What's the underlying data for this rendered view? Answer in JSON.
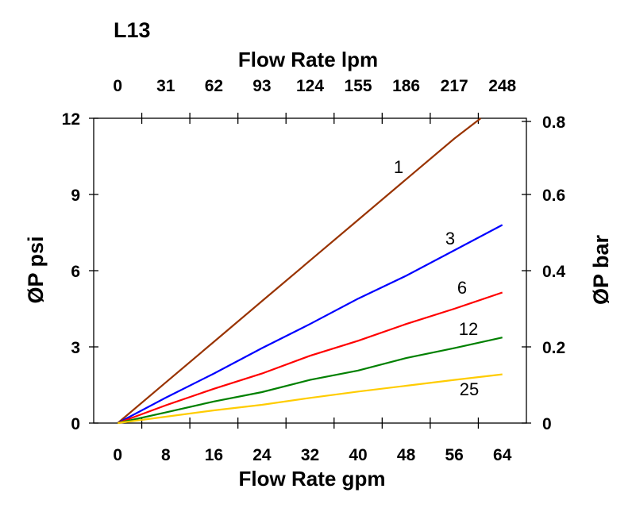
{
  "chart_data": {
    "type": "line",
    "title": "L13",
    "xlabel": "Flow Rate gpm",
    "x2label": "Flow Rate lpm",
    "ylabel": "ØP psi",
    "y2label": "ØP bar",
    "xlim": [
      -4,
      68
    ],
    "ylim": [
      0,
      12
    ],
    "xticks": [
      "0",
      "8",
      "16",
      "24",
      "32",
      "40",
      "48",
      "56",
      "64"
    ],
    "xtick_values": [
      0,
      8,
      16,
      24,
      32,
      40,
      48,
      56,
      64
    ],
    "x2ticks": [
      "0",
      "31",
      "62",
      "93",
      "124",
      "155",
      "186",
      "217",
      "248"
    ],
    "yticks": [
      "0",
      "3",
      "6",
      "9",
      "12"
    ],
    "ytick_values": [
      0,
      3,
      6,
      9,
      12
    ],
    "y2ticks": [
      "0",
      "0.2",
      "0.4",
      "0.6",
      "0.8"
    ],
    "grid": false,
    "series": [
      {
        "name": "1",
        "color": "#993300",
        "x": [
          0,
          8,
          16,
          24,
          32,
          40,
          48,
          56,
          60.4
        ],
        "y": [
          0,
          1.6,
          3.2,
          4.8,
          6.4,
          8.0,
          9.6,
          11.2,
          12
        ]
      },
      {
        "name": "3",
        "color": "#0000ff",
        "x": [
          0,
          8,
          16,
          24,
          32,
          40,
          48,
          56,
          64
        ],
        "y": [
          0,
          1.0,
          1.95,
          2.95,
          3.9,
          4.9,
          5.8,
          6.8,
          7.8
        ]
      },
      {
        "name": "6",
        "color": "#ff0000",
        "x": [
          0,
          8,
          16,
          24,
          32,
          40,
          48,
          56,
          64
        ],
        "y": [
          0,
          0.7,
          1.35,
          1.95,
          2.65,
          3.24,
          3.9,
          4.5,
          5.14
        ]
      },
      {
        "name": "12",
        "color": "#008000",
        "x": [
          0,
          8,
          16,
          24,
          32,
          40,
          48,
          56,
          64
        ],
        "y": [
          0,
          0.42,
          0.85,
          1.22,
          1.7,
          2.07,
          2.56,
          2.95,
          3.37
        ]
      },
      {
        "name": "25",
        "color": "#ffcc00",
        "x": [
          0,
          8,
          16,
          24,
          32,
          40,
          48,
          56,
          64
        ],
        "y": [
          0,
          0.25,
          0.5,
          0.72,
          0.99,
          1.24,
          1.47,
          1.7,
          1.92
        ]
      }
    ]
  }
}
